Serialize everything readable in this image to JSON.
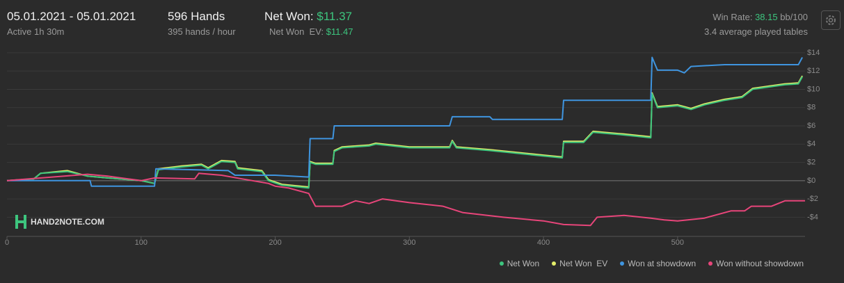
{
  "header": {
    "date_range": "05.01.2021 - 05.01.2021",
    "active": "Active 1h 30m",
    "hands": "596 Hands",
    "hands_per_hour": "395 hands / hour",
    "net_won_label": "Net Won: ",
    "net_won_value": "$11.37",
    "net_won_ev_label": "Net Won  EV: ",
    "net_won_ev_value": "$11.47",
    "win_rate_label": "Win Rate: ",
    "win_rate_value": "38.15",
    "win_rate_unit": " bb/100",
    "tables": "3.4 average played tables"
  },
  "logo": "HAND2NOTE.COM",
  "chart_data": {
    "type": "line",
    "xlim": [
      0,
      595
    ],
    "xticks": [
      0,
      100,
      200,
      300,
      400,
      500
    ],
    "ylim": [
      -6.1,
      14.6
    ],
    "yticks": [
      {
        "value": -4,
        "label": "-$4"
      },
      {
        "value": -2,
        "label": "-$2"
      },
      {
        "value": 0,
        "label": "$0"
      },
      {
        "value": 2,
        "label": "$2"
      },
      {
        "value": 4,
        "label": "$4"
      },
      {
        "value": 6,
        "label": "$6"
      },
      {
        "value": 8,
        "label": "$8"
      },
      {
        "value": 10,
        "label": "$10"
      },
      {
        "value": 12,
        "label": "$12"
      },
      {
        "value": 14,
        "label": "$14"
      }
    ],
    "grid": true,
    "series": [
      {
        "name": "Net Won  EV",
        "color": "#e3ee6a",
        "x": [
          0,
          20,
          25,
          45,
          60,
          75,
          100,
          110,
          113,
          130,
          145,
          150,
          160,
          170,
          172,
          190,
          195,
          205,
          225,
          226,
          230,
          243,
          244,
          250,
          270,
          275,
          300,
          330,
          332,
          335,
          360,
          400,
          414,
          415,
          430,
          437,
          460,
          480,
          481,
          485,
          500,
          510,
          520,
          535,
          548,
          556,
          580,
          590,
          593
        ],
        "values": [
          0,
          0.2,
          0.8,
          1.1,
          0.5,
          0.3,
          0,
          -0.3,
          1.3,
          1.6,
          1.8,
          1.4,
          2.2,
          2.1,
          1.4,
          1.1,
          0.1,
          -0.4,
          -0.7,
          2.1,
          1.9,
          1.9,
          3.3,
          3.7,
          3.9,
          4.1,
          3.7,
          3.7,
          4.4,
          3.7,
          3.4,
          2.8,
          2.6,
          4.3,
          4.3,
          5.4,
          5.1,
          4.8,
          9.6,
          8.1,
          8.3,
          7.9,
          8.4,
          8.9,
          9.2,
          10.1,
          10.6,
          10.7,
          11.47
        ]
      },
      {
        "name": "Net Won",
        "color": "#3dc57e",
        "x": [
          0,
          20,
          25,
          45,
          60,
          75,
          100,
          110,
          113,
          130,
          145,
          150,
          160,
          170,
          172,
          190,
          195,
          205,
          225,
          226,
          230,
          243,
          244,
          250,
          270,
          275,
          300,
          330,
          332,
          335,
          360,
          400,
          414,
          415,
          430,
          437,
          460,
          480,
          481,
          485,
          500,
          510,
          520,
          535,
          548,
          556,
          580,
          590,
          593
        ],
        "values": [
          0,
          0.2,
          0.8,
          1,
          0.5,
          0.3,
          0,
          -0.3,
          1.2,
          1.5,
          1.7,
          1.3,
          2.1,
          2,
          1.3,
          1,
          0,
          -0.5,
          -0.8,
          2,
          1.8,
          1.8,
          3.2,
          3.6,
          3.8,
          4,
          3.6,
          3.6,
          4.3,
          3.6,
          3.3,
          2.7,
          2.5,
          4.2,
          4.2,
          5.3,
          5,
          4.7,
          9.5,
          8,
          8.2,
          7.8,
          8.3,
          8.8,
          9.1,
          10,
          10.5,
          10.6,
          11.37
        ]
      },
      {
        "name": "Won at showdown",
        "color": "#3f95e0",
        "x": [
          0,
          62,
          63,
          110,
          111,
          165,
          170,
          200,
          225,
          226,
          243,
          244,
          330,
          332,
          360,
          362,
          414,
          415,
          480,
          481,
          485,
          500,
          505,
          510,
          535,
          590,
          593
        ],
        "values": [
          0,
          0,
          -0.6,
          -0.6,
          1.3,
          1.1,
          0.6,
          0.6,
          0.4,
          4.6,
          4.6,
          6,
          6,
          7,
          7,
          6.7,
          6.7,
          8.8,
          8.8,
          13.5,
          12.1,
          12.1,
          11.8,
          12.5,
          12.7,
          12.7,
          13.5
        ]
      },
      {
        "name": "Won without showdown",
        "color": "#e8457a",
        "x": [
          0,
          60,
          75,
          100,
          110,
          140,
          143,
          160,
          175,
          195,
          200,
          210,
          225,
          230,
          250,
          260,
          270,
          280,
          300,
          325,
          340,
          370,
          400,
          415,
          435,
          440,
          460,
          480,
          490,
          500,
          520,
          540,
          550,
          555,
          570,
          580,
          595
        ],
        "values": [
          0,
          0.7,
          0.5,
          0,
          0.3,
          0.2,
          0.8,
          0.6,
          0.2,
          -0.3,
          -0.6,
          -0.8,
          -1.4,
          -2.8,
          -2.8,
          -2.2,
          -2.5,
          -2,
          -2.4,
          -2.8,
          -3.5,
          -4,
          -4.4,
          -4.8,
          -4.9,
          -4,
          -3.8,
          -4.1,
          -4.3,
          -4.4,
          -4.1,
          -3.3,
          -3.3,
          -2.8,
          -2.8,
          -2.2,
          -2.2
        ]
      }
    ]
  }
}
